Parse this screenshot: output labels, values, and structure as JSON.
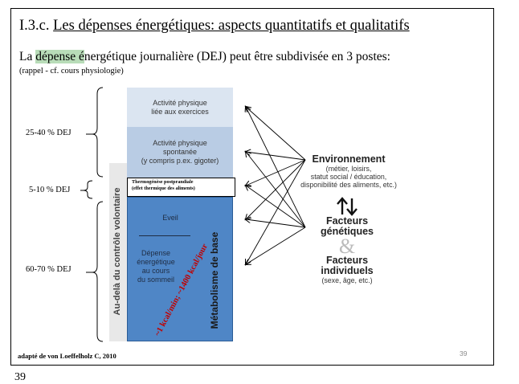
{
  "title": {
    "code": "I.3.c.",
    "text": "Les dépenses énergétiques: aspects quantitatifs et qualitatifs"
  },
  "intro": {
    "prefix": "La ",
    "highlighted": "dépense é",
    "rest": "nergétique journalière (DEJ) peut être subdivisée en 3 postes:",
    "note": "(rappel - cf. cours physiologie)"
  },
  "ranges": {
    "r1": "25-40 % DEJ",
    "r2": "5-10 % DEJ",
    "r3": "60-70 % DEJ"
  },
  "diagram": {
    "box1": [
      "Activité physique",
      "liée aux exercices"
    ],
    "box2": [
      "Activité physique",
      "spontanée",
      "(y compris p.ex. gigoter)"
    ],
    "box3": [
      "Thermogénèse postprandiale",
      "(effet thermique des aliments)"
    ],
    "eveil": "Eveil",
    "sommeil": [
      "Dépense",
      "énergétique",
      "au cours",
      "du sommeil"
    ],
    "vertical_left": "Au-delà du contrôle volontaire",
    "vertical_inner": "Métabolisme de base",
    "red_label": "~1 kcal/min; ~1400 kcal/jour"
  },
  "factors": {
    "env_title": "Environnement",
    "env_sub": [
      "(métier, loisirs,",
      "statut social / éducation,",
      "disponibilité des aliments, etc.)"
    ],
    "genetic": [
      "Facteurs",
      "génétiques"
    ],
    "amp": "&",
    "individual": [
      "Facteurs",
      "individuels"
    ],
    "individual_sub": "(sexe, âge, etc.)"
  },
  "source": "adapté de von Loeffelholz C, 2010",
  "slide_number": "39",
  "page_number": "39",
  "colors": {
    "box1": "#dbe5f1",
    "box2": "#b9cce4",
    "basal": "#4f86c6",
    "highlight": "#b8dcb8",
    "red": "#c00000"
  }
}
